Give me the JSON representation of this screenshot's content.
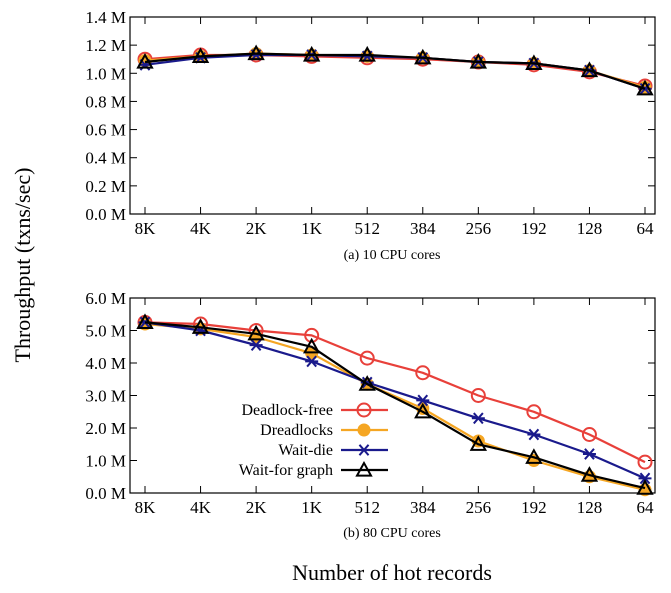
{
  "ylabel": "Throughput (txns/sec)",
  "xlabel": "Number of hot records",
  "legend_position": "bottom-left",
  "series_styles": [
    {
      "color": "#e8403a",
      "marker": "open-circle"
    },
    {
      "color": "#f5a623",
      "marker": "filled-circle"
    },
    {
      "color": "#1a1a8c",
      "marker": "asterisk"
    },
    {
      "color": "#000000",
      "marker": "open-triangle"
    }
  ],
  "chart_data": [
    {
      "type": "line",
      "title": "",
      "caption": "(a) 10 CPU cores",
      "categories": [
        "8K",
        "4K",
        "2K",
        "1K",
        "512",
        "384",
        "256",
        "192",
        "128",
        "64"
      ],
      "ylim": [
        0,
        1.4
      ],
      "yticks": [
        "0.0 M",
        "0.2 M",
        "0.4 M",
        "0.6 M",
        "0.8 M",
        "1.0 M",
        "1.2 M",
        "1.4 M"
      ],
      "grid": false,
      "series": [
        {
          "name": "Deadlock-free",
          "values": [
            1.1,
            1.13,
            1.13,
            1.12,
            1.11,
            1.1,
            1.08,
            1.06,
            1.01,
            0.91
          ]
        },
        {
          "name": "Dreadlocks",
          "values": [
            1.09,
            1.12,
            1.14,
            1.13,
            1.12,
            1.11,
            1.08,
            1.07,
            1.02,
            0.9
          ]
        },
        {
          "name": "Wait-die",
          "values": [
            1.06,
            1.11,
            1.13,
            1.13,
            1.12,
            1.11,
            1.08,
            1.07,
            1.02,
            0.89
          ]
        },
        {
          "name": "Wait-for graph",
          "values": [
            1.08,
            1.12,
            1.14,
            1.13,
            1.13,
            1.11,
            1.08,
            1.07,
            1.02,
            0.89
          ]
        }
      ]
    },
    {
      "type": "line",
      "title": "",
      "caption": "(b) 80 CPU cores",
      "categories": [
        "8K",
        "4K",
        "2K",
        "1K",
        "512",
        "384",
        "256",
        "192",
        "128",
        "64"
      ],
      "ylim": [
        0,
        6.0
      ],
      "yticks": [
        "0.0 M",
        "1.0 M",
        "2.0 M",
        "3.0 M",
        "4.0 M",
        "5.0 M",
        "6.0 M"
      ],
      "grid": false,
      "series": [
        {
          "name": "Deadlock-free",
          "values": [
            5.25,
            5.2,
            5.0,
            4.85,
            4.15,
            3.7,
            3.0,
            2.5,
            1.8,
            0.95
          ]
        },
        {
          "name": "Dreadlocks",
          "values": [
            5.2,
            5.05,
            4.8,
            4.3,
            3.35,
            2.6,
            1.6,
            1.0,
            0.5,
            0.1
          ]
        },
        {
          "name": "Wait-die",
          "values": [
            5.25,
            5.0,
            4.55,
            4.05,
            3.4,
            2.85,
            2.3,
            1.8,
            1.2,
            0.45
          ]
        },
        {
          "name": "Wait-for graph",
          "values": [
            5.25,
            5.1,
            4.9,
            4.5,
            3.35,
            2.5,
            1.5,
            1.1,
            0.55,
            0.15
          ]
        }
      ]
    }
  ]
}
